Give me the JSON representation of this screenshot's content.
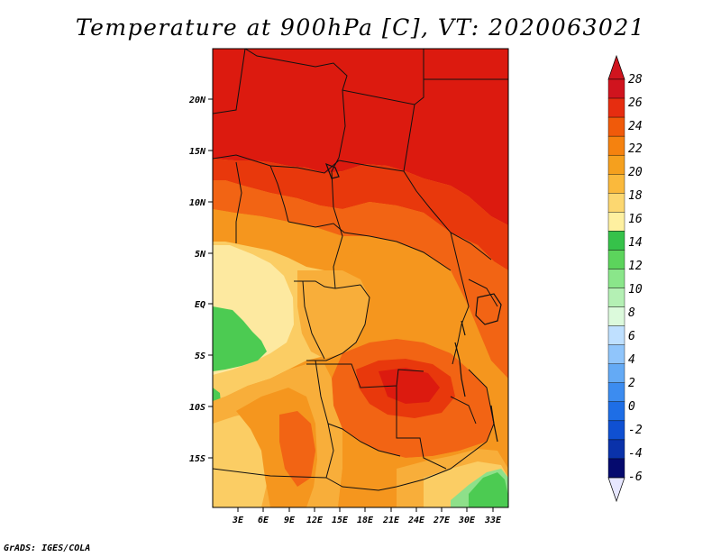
{
  "title": "Temperature at 900hPa [C], VT: 2020063021",
  "credit": "GrADS: IGES/COLA",
  "map": {
    "lat_ticks": [
      "20N",
      "15N",
      "10N",
      "5N",
      "EQ",
      "5S",
      "10S",
      "15S"
    ],
    "lon_ticks": [
      "3E",
      "6E",
      "9E",
      "12E",
      "15E",
      "18E",
      "21E",
      "24E",
      "27E",
      "30E",
      "33E"
    ]
  },
  "colorbar": {
    "labels": [
      "28",
      "26",
      "24",
      "22",
      "20",
      "18",
      "16",
      "14",
      "12",
      "10",
      "8",
      "6",
      "4",
      "2",
      "0",
      "-2",
      "-4",
      "-6"
    ],
    "top_color": "#d0141e",
    "bottom_color": "#e6e6ff",
    "colors": [
      "#d0141e",
      "#e62d10",
      "#f05a0a",
      "#f5820f",
      "#f5a01e",
      "#fab93c",
      "#fcd770",
      "#fef0a0",
      "#36c24a",
      "#5cd45c",
      "#8ae68a",
      "#b4f0b4",
      "#dcfadc",
      "#bfe0ff",
      "#90c5fb",
      "#64aaf5",
      "#3c8cf0",
      "#1e6ee6",
      "#0f50d2",
      "#0a32aa",
      "#050a6e"
    ]
  },
  "field_colors": {
    "c28": "#dc1a0f",
    "c26": "#e8380c",
    "c24": "#f26414",
    "c22": "#f5961e",
    "c20": "#f8ae3a",
    "c18": "#fbcd64",
    "c16": "#fde9a0",
    "c14": "#4ccb52",
    "c12": "#8ee08a"
  }
}
